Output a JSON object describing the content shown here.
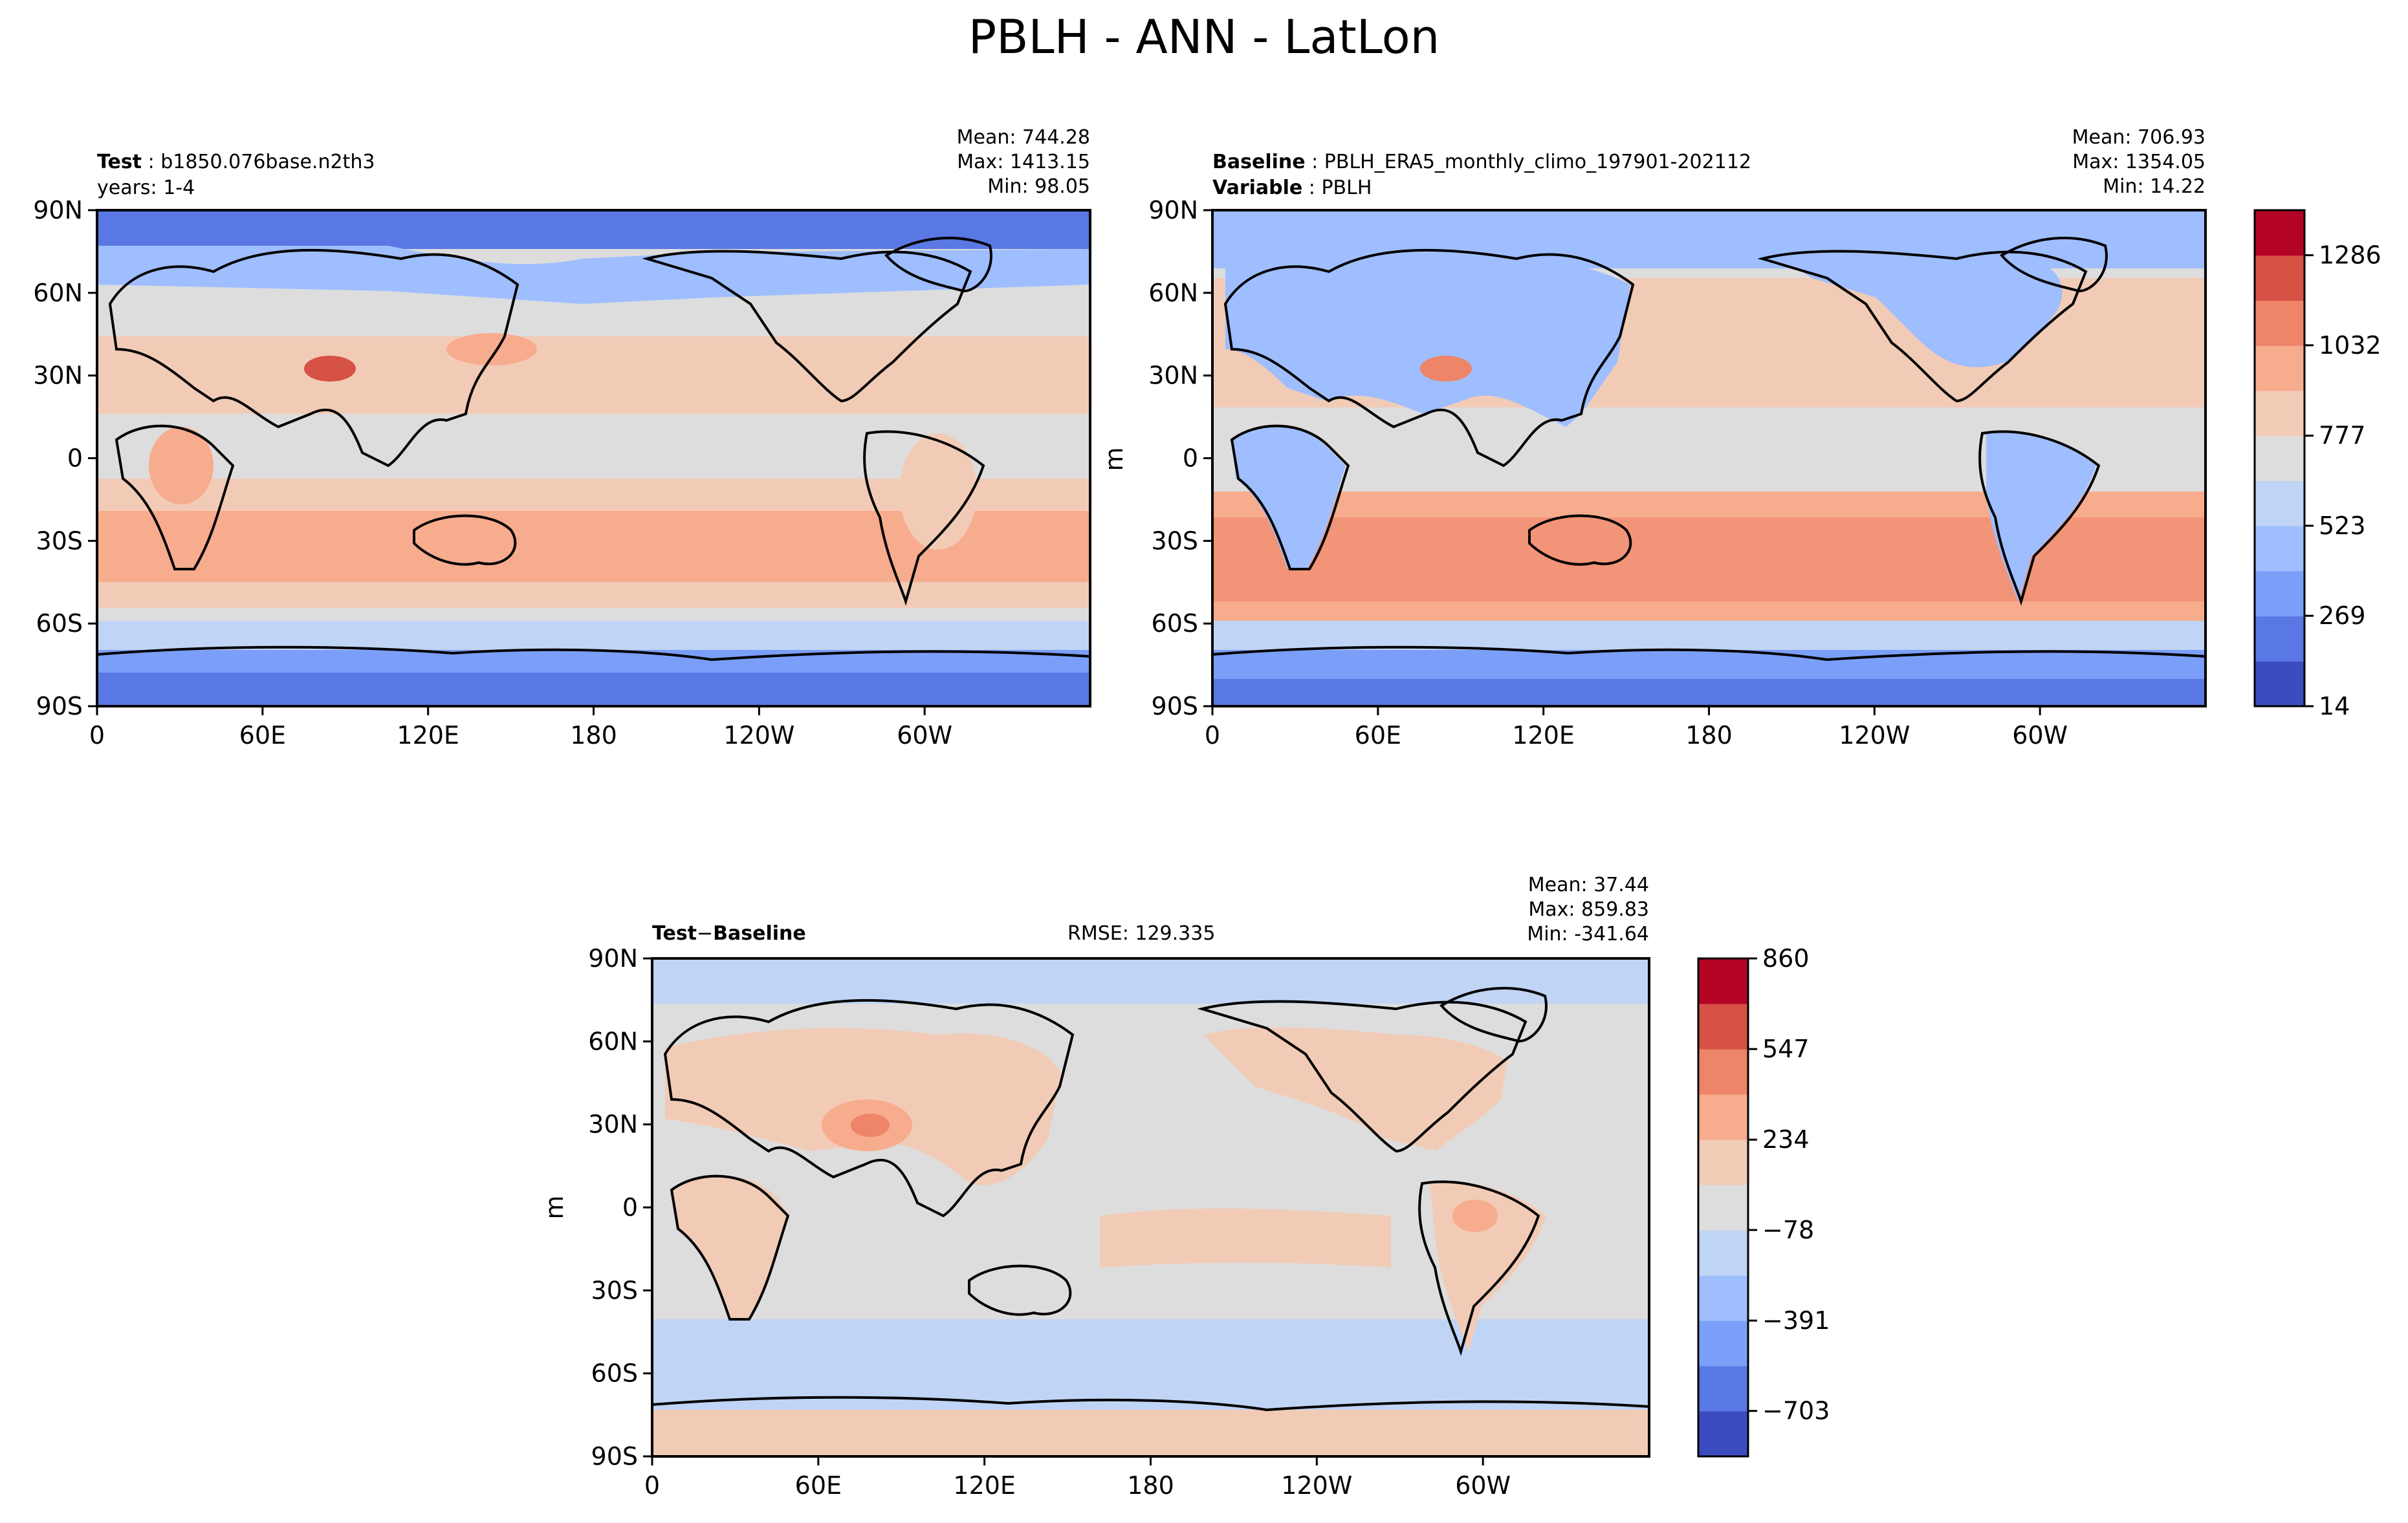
{
  "title": "PBLH - ANN - LatLon",
  "chart_data": [
    {
      "type": "heatmap",
      "panel": "test",
      "label_bold": "Test",
      "label_value": "b1850.076base.n2th3",
      "label_line2": "years: 1-4",
      "stats": {
        "mean": "Mean: 744.28",
        "max": "Max: 1413.15",
        "min": "Min: 98.05"
      },
      "xlabel": "",
      "ylabel": "",
      "xticks": [
        "0",
        "60E",
        "120E",
        "180",
        "120W",
        "60W"
      ],
      "yticks": [
        "90N",
        "60N",
        "30N",
        "0",
        "30S",
        "60S",
        "90S"
      ],
      "xlim": [
        0,
        360
      ],
      "ylim": [
        -90,
        90
      ],
      "range": [
        14,
        1413
      ]
    },
    {
      "type": "heatmap",
      "panel": "baseline",
      "label_bold": "Baseline",
      "label_value": "PBLH_ERA5_monthly_climo_197901-202112",
      "label_bold2": "Variable",
      "label_value2": "PBLH",
      "stats": {
        "mean": "Mean: 706.93",
        "max": "Max: 1354.05",
        "min": "Min: 14.22"
      },
      "xlabel": "",
      "ylabel": "m",
      "xticks": [
        "0",
        "60E",
        "120E",
        "180",
        "120W",
        "60W"
      ],
      "yticks": [
        "90N",
        "60N",
        "30N",
        "0",
        "30S",
        "60S",
        "90S"
      ],
      "xlim": [
        0,
        360
      ],
      "ylim": [
        -90,
        90
      ],
      "colorbar": {
        "ticks": [
          "14",
          "269",
          "523",
          "777",
          "1032",
          "1286"
        ],
        "tick_values": [
          14,
          269,
          523,
          777,
          1032,
          1286
        ],
        "range": [
          14,
          1413
        ]
      }
    },
    {
      "type": "heatmap",
      "panel": "difference",
      "label_bold": "Test",
      "label_op": "−",
      "label_bold2": "Baseline",
      "rmse": "RMSE: 129.335",
      "stats": {
        "mean": "Mean: 37.44",
        "max": "Max: 859.83",
        "min": "Min: -341.64"
      },
      "xlabel": "",
      "ylabel": "m",
      "xticks": [
        "0",
        "60E",
        "120E",
        "180",
        "120W",
        "60W"
      ],
      "yticks": [
        "90N",
        "60N",
        "30N",
        "0",
        "30S",
        "60S",
        "90S"
      ],
      "xlim": [
        0,
        360
      ],
      "ylim": [
        -90,
        90
      ],
      "colorbar": {
        "ticks": [
          "860",
          "547",
          "234",
          "−78",
          "−391",
          "−703"
        ],
        "tick_values": [
          860,
          547,
          234,
          -78,
          -391,
          -703
        ],
        "range": [
          -860,
          860
        ]
      }
    }
  ],
  "colors": {
    "colormap": [
      "#3b4cc0",
      "#5a78e4",
      "#7b9ff9",
      "#9ebeff",
      "#c0d4f5",
      "#dddddd",
      "#f2cbb7",
      "#f7ac8e",
      "#ee8468",
      "#d65244",
      "#b40426"
    ]
  }
}
